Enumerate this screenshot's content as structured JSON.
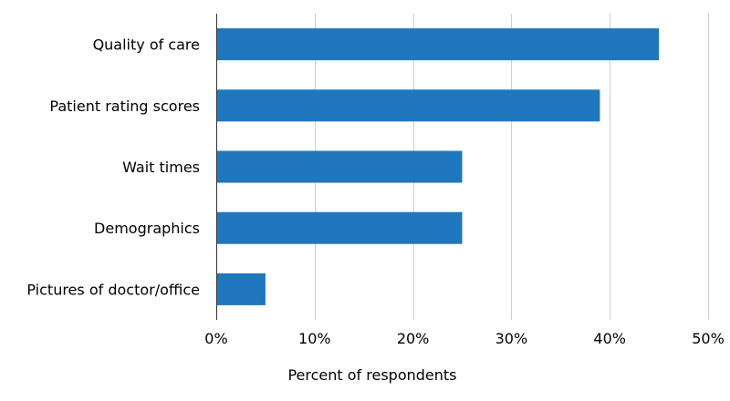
{
  "chart_data": {
    "type": "bar",
    "orientation": "horizontal",
    "categories": [
      "Quality of care",
      "Patient rating scores",
      "Wait times",
      "Demographics",
      "Pictures of doctor/office"
    ],
    "values": [
      45,
      39,
      25,
      25,
      5
    ],
    "unit": "%",
    "xlabel": "Percent of respondents",
    "ylabel": "",
    "xlim": [
      0,
      50
    ],
    "xticks": [
      "0%",
      "10%",
      "20%",
      "30%",
      "40%",
      "50%"
    ],
    "grid": true,
    "bar_color": "#1f77bd",
    "grid_color": "#cccccc",
    "axis_color": "#333333"
  }
}
